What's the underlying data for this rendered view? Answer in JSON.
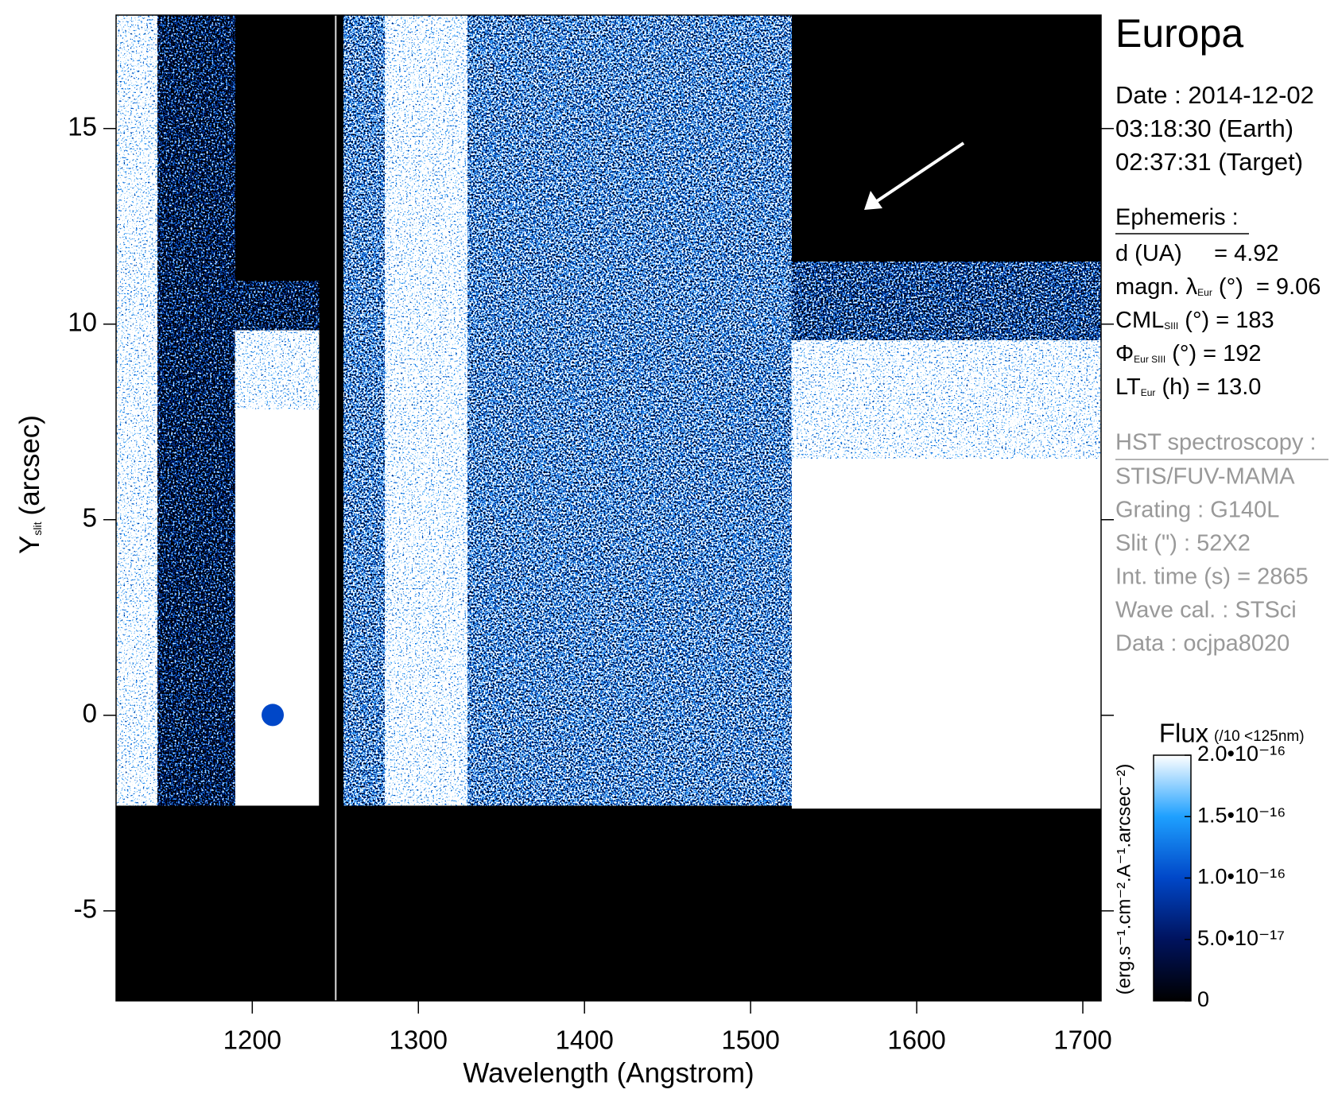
{
  "chart_data": {
    "type": "image",
    "xlabel": "Wavelength (Angstrom)",
    "ylabel": "Y",
    "ylabel_sub": "slit",
    "ylabel_unit": "(arcsec)",
    "xlim": [
      1118,
      1711
    ],
    "xticks": [
      1200,
      1300,
      1400,
      1500,
      1600,
      1700
    ],
    "ylim": [
      -7.3,
      17.9
    ],
    "yticks": [
      -5,
      0,
      5,
      10,
      15
    ],
    "colorbar": {
      "title": "Flux",
      "note": "(/10 <125nm)",
      "label": "(erg.s⁻¹.cm⁻².A⁻¹.arcsec⁻²)",
      "clim": [
        0,
        2e-16
      ],
      "ticks": [
        0,
        {
          "value": 5e-17,
          "label": "5.0•10⁻¹⁷"
        },
        {
          "value": 1e-16,
          "label": "1.0•10⁻¹⁶"
        },
        {
          "value": 1.5e-16,
          "label": "1.5•10⁻¹⁶"
        },
        {
          "value": 2e-16,
          "label": "2.0•10⁻¹⁶"
        }
      ],
      "colors": [
        "#000000",
        "#00135e",
        "#0047c8",
        "#1ea0ff",
        "#ffffff"
      ]
    }
  },
  "info": {
    "title": "Europa",
    "date": [
      "Date : 2014-12-02",
      "03:18:30 (Earth)",
      "02:37:31 (Target)"
    ],
    "ephemeris_title": "Ephemeris :",
    "ephemeris": [
      {
        "text": "d (UA)     = 4.92"
      },
      {
        "text": "magn. λ",
        "sub": "Eur",
        "rest": " (°)  = 9.06"
      },
      {
        "text": "CML",
        "sub": "SIII",
        "rest": " (°) = 183"
      },
      {
        "text": "Φ",
        "sub": "Eur SIII",
        "rest": " (°) = 192"
      },
      {
        "text": "LT",
        "sub": "Eur",
        "rest": " (h) = 13.0"
      }
    ],
    "hst_title": "HST spectroscopy :",
    "hst": [
      "STIS/FUV-MAMA",
      "Grating : G140L",
      "Slit (\") : 52X2",
      "Int. time (s) = 2865",
      "Wave cal. : STSci",
      "Data : ocjpa8020"
    ]
  }
}
